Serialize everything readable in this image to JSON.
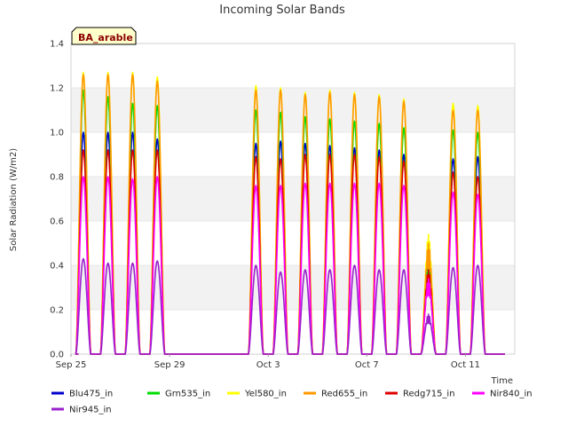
{
  "chart_data": {
    "type": "line",
    "title": "Incoming Solar Bands",
    "site_label": "BA_arable",
    "xlabel": "Time",
    "ylabel": "Solar Radiation (W/m2)",
    "ylim": [
      0,
      1.4
    ],
    "xlim_days": [
      0,
      18
    ],
    "yticks": [
      "0.0",
      "0.2",
      "0.4",
      "0.6",
      "0.8",
      "1.0",
      "1.2",
      "1.4"
    ],
    "xticks": [
      {
        "day": 0,
        "label": "Sep 25"
      },
      {
        "day": 4,
        "label": "Sep 29"
      },
      {
        "day": 8,
        "label": "Oct 3"
      },
      {
        "day": 12,
        "label": "Oct 7"
      },
      {
        "day": 16,
        "label": "Oct 11"
      }
    ],
    "grid": "horizontal",
    "legend_position": "bottom",
    "daily_peak_days": [
      0.5,
      1.5,
      2.5,
      3.5,
      7.5,
      8.5,
      9.5,
      10.5,
      11.5,
      12.5,
      13.5,
      14.5,
      15.5,
      16.5
    ],
    "series": [
      {
        "name": "Blu475_in",
        "color": "#0000cc",
        "peaks": [
          1.0,
          1.0,
          1.0,
          0.97,
          0.95,
          0.96,
          0.95,
          0.94,
          0.93,
          0.92,
          0.9,
          0.35,
          0.88,
          0.89
        ]
      },
      {
        "name": "Grn535_in",
        "color": "#00dd00",
        "peaks": [
          1.19,
          1.16,
          1.13,
          1.12,
          1.1,
          1.09,
          1.07,
          1.06,
          1.05,
          1.04,
          1.02,
          0.42,
          1.01,
          1.0
        ]
      },
      {
        "name": "Yel580_in",
        "color": "#ffff00",
        "peaks": [
          1.27,
          1.27,
          1.27,
          1.25,
          1.21,
          1.2,
          1.18,
          1.19,
          1.18,
          1.17,
          1.15,
          0.54,
          1.13,
          1.12
        ]
      },
      {
        "name": "Red655_in",
        "color": "#ff9900",
        "peaks": [
          1.26,
          1.26,
          1.26,
          1.23,
          1.19,
          1.19,
          1.17,
          1.18,
          1.17,
          1.16,
          1.14,
          0.5,
          1.1,
          1.1
        ]
      },
      {
        "name": "Redg715_in",
        "color": "#dd0000",
        "peaks": [
          0.92,
          0.92,
          0.92,
          0.92,
          0.89,
          0.88,
          0.9,
          0.9,
          0.9,
          0.89,
          0.87,
          0.38,
          0.82,
          0.8
        ]
      },
      {
        "name": "Nir840_in",
        "color": "#ff00ff",
        "peaks": [
          0.8,
          0.8,
          0.79,
          0.8,
          0.76,
          0.76,
          0.77,
          0.77,
          0.77,
          0.77,
          0.76,
          0.34,
          0.73,
          0.72
        ]
      },
      {
        "name": "Nir945_in",
        "color": "#9922cc",
        "peaks": [
          0.43,
          0.41,
          0.41,
          0.42,
          0.4,
          0.37,
          0.38,
          0.38,
          0.4,
          0.38,
          0.38,
          0.18,
          0.39,
          0.4
        ]
      }
    ]
  }
}
